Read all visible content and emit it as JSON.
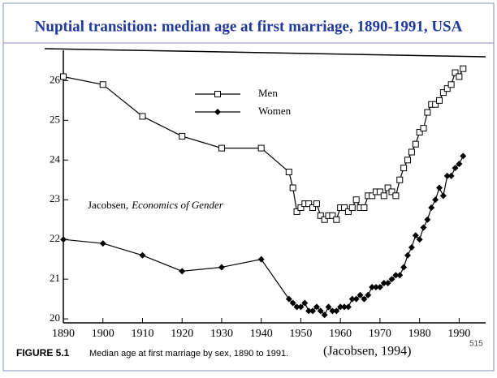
{
  "chart_data": {
    "type": "line",
    "title": "Nuptial transition: median age at first marriage, 1890-1991, USA",
    "x": [
      1890,
      1900,
      1910,
      1920,
      1930,
      1940,
      1947,
      1948,
      1949,
      1950,
      1951,
      1952,
      1953,
      1954,
      1955,
      1956,
      1957,
      1958,
      1959,
      1960,
      1961,
      1962,
      1963,
      1964,
      1965,
      1966,
      1967,
      1968,
      1969,
      1970,
      1971,
      1972,
      1973,
      1974,
      1975,
      1976,
      1977,
      1978,
      1979,
      1980,
      1981,
      1982,
      1983,
      1984,
      1985,
      1986,
      1987,
      1988,
      1989,
      1990,
      1991
    ],
    "series": [
      {
        "name": "Men",
        "color": "#000000",
        "marker": "square-open",
        "values": [
          26.1,
          25.9,
          25.1,
          24.6,
          24.3,
          24.3,
          23.7,
          23.3,
          22.7,
          22.8,
          22.9,
          22.9,
          22.8,
          22.9,
          22.6,
          22.5,
          22.6,
          22.6,
          22.5,
          22.8,
          22.8,
          22.7,
          22.8,
          23.0,
          22.8,
          22.8,
          23.1,
          23.1,
          23.2,
          23.2,
          23.1,
          23.3,
          23.2,
          23.1,
          23.5,
          23.8,
          24.0,
          24.2,
          24.4,
          24.7,
          24.8,
          25.2,
          25.4,
          25.4,
          25.5,
          25.7,
          25.8,
          25.9,
          26.2,
          26.1,
          26.3
        ]
      },
      {
        "name": "Women",
        "color": "#000000",
        "marker": "diamond",
        "values": [
          22.0,
          21.9,
          21.6,
          21.2,
          21.3,
          21.5,
          20.5,
          20.4,
          20.3,
          20.3,
          20.4,
          20.2,
          20.2,
          20.3,
          20.2,
          20.1,
          20.3,
          20.2,
          20.2,
          20.3,
          20.3,
          20.3,
          20.5,
          20.5,
          20.6,
          20.5,
          20.6,
          20.8,
          20.8,
          20.8,
          20.9,
          20.9,
          21.0,
          21.1,
          21.1,
          21.3,
          21.6,
          21.8,
          22.1,
          22.0,
          22.3,
          22.5,
          22.8,
          23.0,
          23.3,
          23.1,
          23.6,
          23.6,
          23.8,
          23.9,
          24.1
        ]
      }
    ],
    "xlim": [
      1890,
      1993
    ],
    "xticks": [
      1890,
      1900,
      1910,
      1920,
      1930,
      1940,
      1950,
      1960,
      1970,
      1980,
      1990
    ],
    "ylim": [
      19.9,
      26.6
    ],
    "yticks": [
      20,
      21,
      22,
      23,
      24,
      25,
      26
    ],
    "annotation": [
      "Jacobsen,",
      "Economics of Gender"
    ],
    "figure_label": "FIGURE 5.1",
    "caption": "Median age at first marriage by sex, 1890 to 1991.",
    "source": "(Jacobsen, 1994)",
    "page_number": "515"
  }
}
